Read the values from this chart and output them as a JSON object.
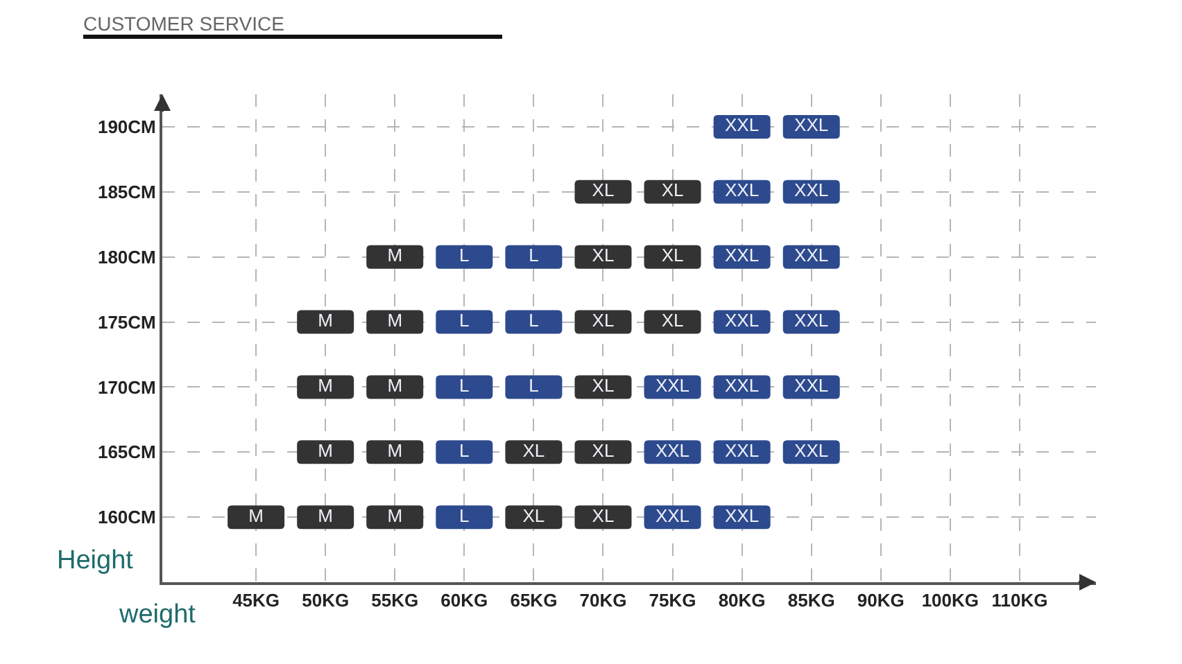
{
  "chart_data": {
    "type": "scatter",
    "title": "CUSTOMER SERVICE",
    "xlabel": "weight",
    "ylabel": "Height",
    "categories": [
      "45KG",
      "50KG",
      "55KG",
      "60KG",
      "65KG",
      "70KG",
      "75KG",
      "80KG",
      "85KG",
      "90KG",
      "100KG",
      "110KG"
    ],
    "series": [
      {
        "name": "M",
        "color": "#333333",
        "x": [
          "45KG",
          "50KG",
          "55KG",
          "50KG",
          "55KG",
          "50KG",
          "55KG",
          "50KG",
          "55KG",
          "55KG"
        ],
        "values": [
          160,
          160,
          160,
          165,
          165,
          170,
          170,
          175,
          175,
          180
        ]
      },
      {
        "name": "L",
        "color": "#2d4a8e",
        "x": [
          "60KG",
          "60KG",
          "60KG",
          "65KG",
          "60KG",
          "65KG",
          "60KG",
          "65KG"
        ],
        "values": [
          160,
          165,
          170,
          170,
          175,
          175,
          180,
          180
        ]
      },
      {
        "name": "XL",
        "color": "#333333",
        "x": [
          "65KG",
          "70KG",
          "65KG",
          "70KG",
          "70KG",
          "70KG",
          "75KG",
          "70KG",
          "75KG",
          "70KG",
          "75KG"
        ],
        "values": [
          160,
          160,
          165,
          165,
          170,
          175,
          175,
          180,
          180,
          185,
          185
        ]
      },
      {
        "name": "XXL",
        "color": "#2d4a8e",
        "x": [
          "75KG",
          "80KG",
          "75KG",
          "80KG",
          "85KG",
          "75KG",
          "80KG",
          "85KG",
          "80KG",
          "85KG",
          "80KG",
          "85KG",
          "80KG",
          "85KG",
          "80KG",
          "85KG"
        ],
        "values": [
          160,
          160,
          165,
          165,
          165,
          170,
          170,
          170,
          175,
          175,
          180,
          180,
          185,
          185,
          190,
          190
        ]
      }
    ],
    "ylim": [
      155,
      192.5
    ],
    "yticks": [
      {
        "value": 160,
        "label": "160CM"
      },
      {
        "value": 165,
        "label": "165CM"
      },
      {
        "value": 170,
        "label": "170CM"
      },
      {
        "value": 175,
        "label": "175CM"
      },
      {
        "value": 180,
        "label": "180CM"
      },
      {
        "value": 185,
        "label": "185CM"
      },
      {
        "value": 190,
        "label": "190CM"
      }
    ],
    "grid": true,
    "legend": false,
    "marker": "square"
  }
}
